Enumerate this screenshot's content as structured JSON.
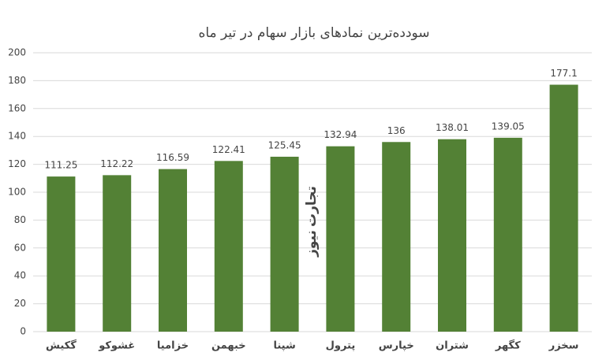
{
  "chart_data": {
    "type": "bar",
    "title": "سودده‌ترین نمادهای بازار سهام در تیر ماه",
    "categories": [
      "گکیش",
      "غشوکو",
      "خزامیا",
      "خبهمن",
      "شپنا",
      "پترول",
      "خپارس",
      "شتران",
      "کگهر",
      "سخزر"
    ],
    "values": [
      111.25,
      112.22,
      116.59,
      122.41,
      125.45,
      132.94,
      136,
      138.01,
      139.05,
      177.1
    ],
    "color": "#538135",
    "ylim": [
      0,
      200
    ],
    "yticks": [
      0,
      20,
      40,
      60,
      80,
      100,
      120,
      140,
      160,
      180,
      200
    ],
    "grid": true,
    "watermark": [
      "تجارت",
      "نیوز"
    ]
  }
}
